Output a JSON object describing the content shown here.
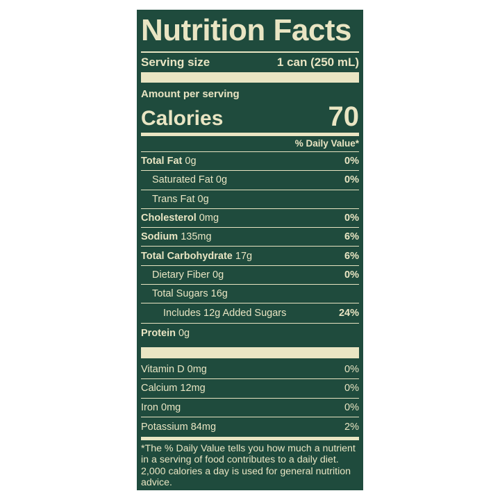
{
  "title": "Nutrition Facts",
  "serving": {
    "label": "Serving size",
    "value": "1 can (250 mL)"
  },
  "amount_per_serving": "Amount per serving",
  "calories": {
    "label": "Calories",
    "value": "70"
  },
  "dv_header": "% Daily Value*",
  "nutrients": [
    {
      "label": "Total Fat",
      "amount": "0g",
      "dv": "0%",
      "bold": true,
      "indent": 0
    },
    {
      "label": "Saturated Fat",
      "amount": "0g",
      "dv": "0%",
      "bold": false,
      "indent": 1
    },
    {
      "label": "Trans Fat",
      "amount": "0g",
      "dv": "",
      "bold": false,
      "indent": 1
    },
    {
      "label": "Cholesterol",
      "amount": "0mg",
      "dv": "0%",
      "bold": true,
      "indent": 0
    },
    {
      "label": "Sodium",
      "amount": "135mg",
      "dv": "6%",
      "bold": true,
      "indent": 0
    },
    {
      "label": "Total Carbohydrate",
      "amount": "17g",
      "dv": "6%",
      "bold": true,
      "indent": 0
    },
    {
      "label": "Dietary Fiber",
      "amount": "0g",
      "dv": "0%",
      "bold": false,
      "indent": 1
    },
    {
      "label": "Total Sugars",
      "amount": "16g",
      "dv": "",
      "bold": false,
      "indent": 1
    },
    {
      "label": "Includes 12g Added Sugars",
      "amount": "",
      "dv": "24%",
      "bold": false,
      "indent": 2
    },
    {
      "label": "Protein",
      "amount": "0g",
      "dv": "",
      "bold": true,
      "indent": 0
    }
  ],
  "vitamins": [
    {
      "label": "Vitamin D",
      "amount": "0mg",
      "dv": "0%"
    },
    {
      "label": "Calcium",
      "amount": "12mg",
      "dv": "0%"
    },
    {
      "label": "Iron",
      "amount": "0mg",
      "dv": "0%"
    },
    {
      "label": "Potassium",
      "amount": "84mg",
      "dv": "2%"
    }
  ],
  "footnote": "*The % Daily Value tells you how much a nutrient in a serving of food contributes to a daily diet. 2,000 calories a day is used for general nutrition advice.",
  "colors": {
    "background": "#1f4b3d",
    "text": "#e9e5c3"
  }
}
